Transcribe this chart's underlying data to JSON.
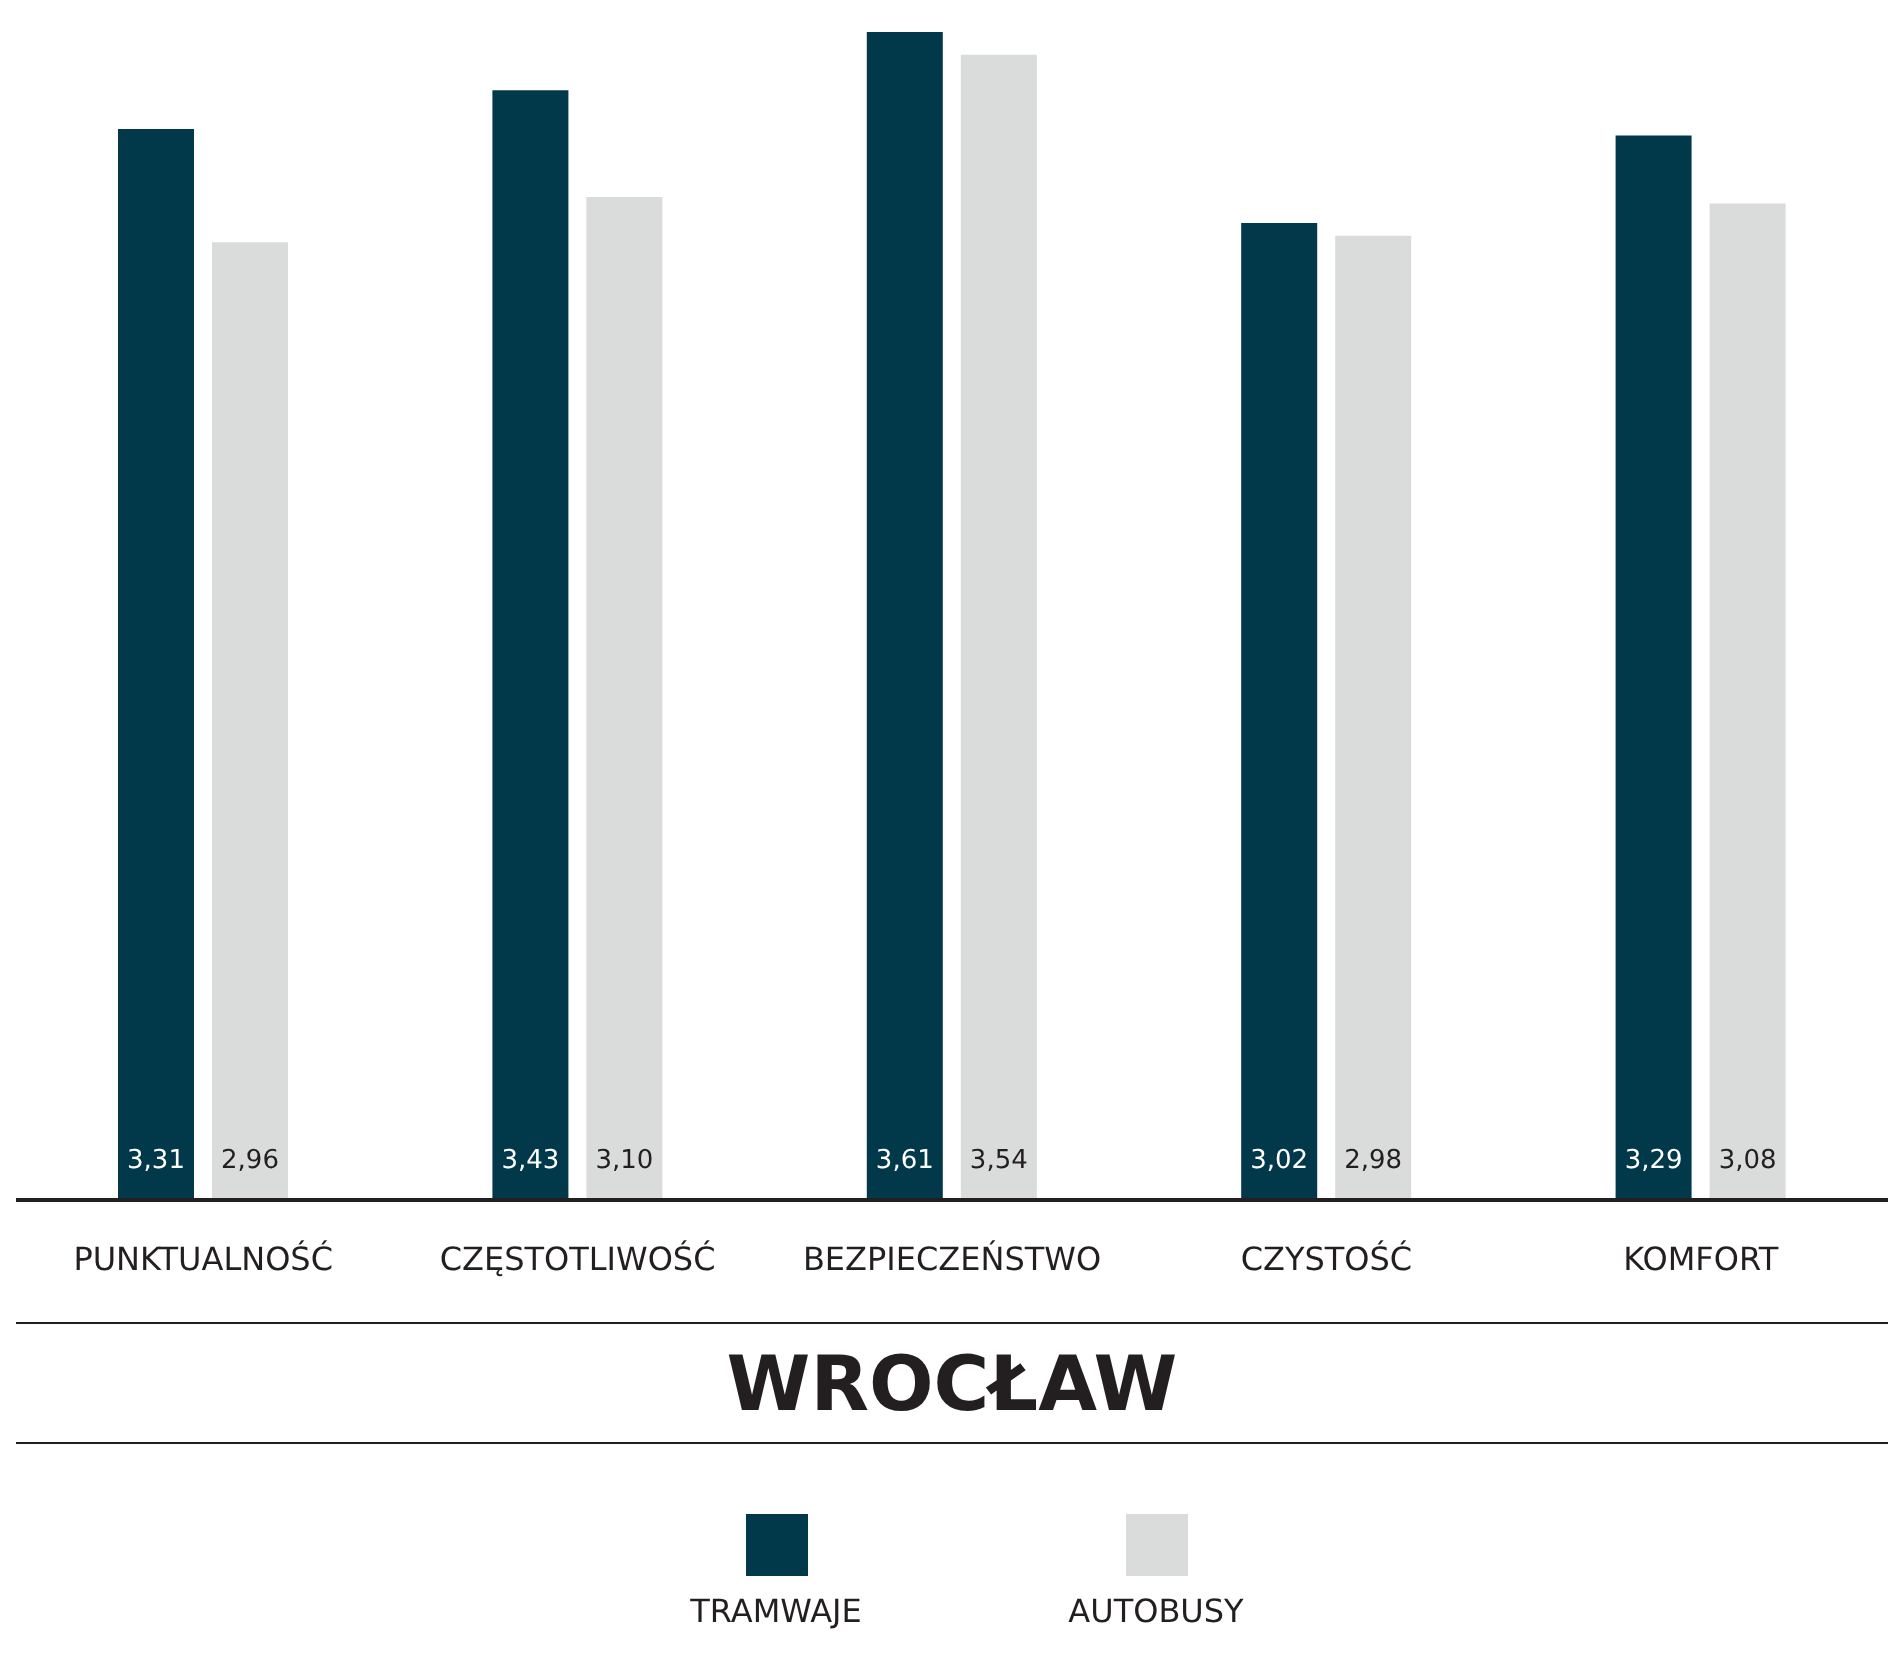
{
  "chart_data": {
    "type": "bar",
    "title": "WROCŁAW",
    "categories": [
      "PUNKTUALNOŚĆ",
      "CZĘSTOTLIWOŚĆ",
      "BEZPIECZEŃSTWO",
      "CZYSTOŚĆ",
      "KOMFORT"
    ],
    "series": [
      {
        "name": "TRAMWAJE",
        "color": "#02394a",
        "values": [
          3.31,
          3.43,
          3.61,
          3.02,
          3.29
        ],
        "value_labels": [
          "3,31",
          "3,43",
          "3,61",
          "3,02",
          "3,29"
        ]
      },
      {
        "name": "AUTOBUSY",
        "color": "#d9dcdb",
        "values": [
          2.96,
          3.1,
          3.54,
          2.98,
          3.08
        ],
        "value_labels": [
          "2,96",
          "3,10",
          "3,54",
          "2,98",
          "3,08"
        ]
      }
    ],
    "legend": "bottom",
    "tick_labels": "x"
  }
}
